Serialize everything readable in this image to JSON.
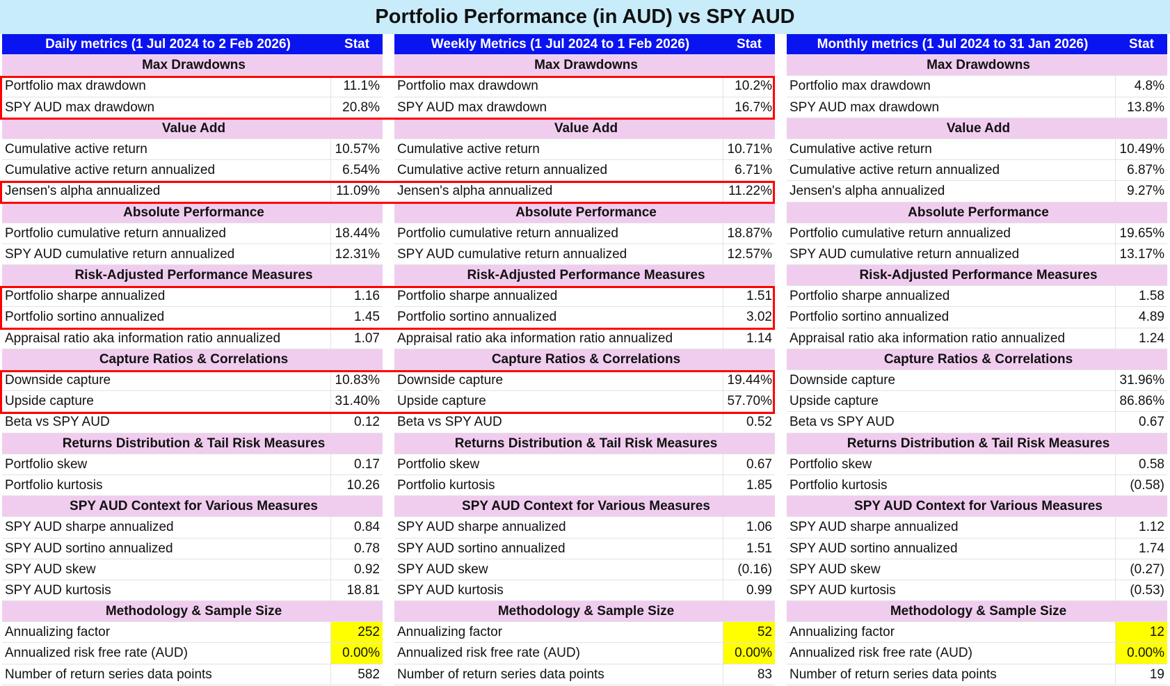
{
  "title": "Portfolio Performance (in AUD) vs SPY AUD",
  "colors": {
    "title_bg": "#c9ecfa",
    "header_bg": "#0a14f0",
    "section_bg": "#f0cdef",
    "highlight": "#ffff00",
    "box": "#ff0000"
  },
  "panels": [
    {
      "header": "Daily metrics (1 Jul 2024 to 2 Feb 2026)",
      "stat_label": "Stat",
      "rows": [
        {
          "s": "Max Drawdowns"
        },
        {
          "l": "Portfolio max drawdown",
          "v": "11.1%"
        },
        {
          "l": "SPY AUD max drawdown",
          "v": "20.8%"
        },
        {
          "s": "Value Add"
        },
        {
          "l": "Cumulative active return",
          "v": "10.57%"
        },
        {
          "l": "Cumulative active return annualized",
          "v": "6.54%"
        },
        {
          "l": "Jensen's alpha annualized",
          "v": "11.09%"
        },
        {
          "s": "Absolute Performance"
        },
        {
          "l": "Portfolio cumulative return annualized",
          "v": "18.44%"
        },
        {
          "l": "SPY AUD cumulative return annualized",
          "v": "12.31%"
        },
        {
          "s": "Risk-Adjusted Performance Measures"
        },
        {
          "l": "Portfolio sharpe annualized",
          "v": "1.16"
        },
        {
          "l": "Portfolio sortino annualized",
          "v": "1.45"
        },
        {
          "l": "Appraisal ratio aka information ratio annualized",
          "v": "1.07"
        },
        {
          "s": "Capture Ratios & Correlations"
        },
        {
          "l": "Downside capture",
          "v": "10.83%"
        },
        {
          "l": "Upside capture",
          "v": "31.40%"
        },
        {
          "l": "Beta vs SPY AUD",
          "v": "0.12"
        },
        {
          "s": "Returns Distribution & Tail Risk Measures"
        },
        {
          "l": "Portfolio skew",
          "v": "0.17"
        },
        {
          "l": "Portfolio kurtosis",
          "v": "10.26"
        },
        {
          "s": "SPY AUD Context for Various Measures"
        },
        {
          "l": "SPY AUD sharpe annualized",
          "v": "0.84"
        },
        {
          "l": "SPY AUD sortino annualized",
          "v": "0.78"
        },
        {
          "l": "SPY AUD skew",
          "v": "0.92"
        },
        {
          "l": "SPY AUD kurtosis",
          "v": "18.81"
        },
        {
          "s": "Methodology & Sample Size"
        },
        {
          "l": "Annualizing factor",
          "v": "252",
          "hl": true
        },
        {
          "l": "Annualized risk free rate (AUD)",
          "v": "0.00%",
          "hl": true
        },
        {
          "l": "Number of return series data points",
          "v": "582"
        }
      ]
    },
    {
      "header": "Weekly Metrics (1 Jul 2024 to 1 Feb 2026)",
      "stat_label": "Stat",
      "rows": [
        {
          "s": "Max Drawdowns"
        },
        {
          "l": "Portfolio max drawdown",
          "v": "10.2%"
        },
        {
          "l": "SPY AUD max drawdown",
          "v": "16.7%"
        },
        {
          "s": "Value Add"
        },
        {
          "l": "Cumulative active return",
          "v": "10.71%"
        },
        {
          "l": "Cumulative active return annualized",
          "v": "6.71%"
        },
        {
          "l": "Jensen's alpha annualized",
          "v": "11.22%"
        },
        {
          "s": "Absolute Performance"
        },
        {
          "l": "Portfolio cumulative return annualized",
          "v": "18.87%"
        },
        {
          "l": "SPY AUD cumulative return annualized",
          "v": "12.57%"
        },
        {
          "s": "Risk-Adjusted Performance Measures"
        },
        {
          "l": "Portfolio sharpe annualized",
          "v": "1.51"
        },
        {
          "l": "Portfolio sortino annualized",
          "v": "3.02"
        },
        {
          "l": "Appraisal ratio aka information ratio annualized",
          "v": "1.14"
        },
        {
          "s": "Capture Ratios & Correlations"
        },
        {
          "l": "Downside capture",
          "v": "19.44%"
        },
        {
          "l": "Upside capture",
          "v": "57.70%"
        },
        {
          "l": "Beta vs SPY AUD",
          "v": "0.52"
        },
        {
          "s": "Returns Distribution & Tail Risk Measures"
        },
        {
          "l": "Portfolio skew",
          "v": "0.67"
        },
        {
          "l": "Portfolio kurtosis",
          "v": "1.85"
        },
        {
          "s": "SPY AUD Context for Various Measures"
        },
        {
          "l": "SPY AUD sharpe annualized",
          "v": "1.06"
        },
        {
          "l": "SPY AUD sortino annualized",
          "v": "1.51"
        },
        {
          "l": "SPY AUD skew",
          "v": "(0.16)"
        },
        {
          "l": "SPY AUD kurtosis",
          "v": "0.99"
        },
        {
          "s": "Methodology & Sample Size"
        },
        {
          "l": "Annualizing factor",
          "v": "52",
          "hl": true
        },
        {
          "l": "Annualized risk free rate (AUD)",
          "v": "0.00%",
          "hl": true
        },
        {
          "l": "Number of return series data points",
          "v": "83"
        }
      ]
    },
    {
      "header": "Monthly metrics (1 Jul 2024 to 31 Jan 2026)",
      "stat_label": "Stat",
      "rows": [
        {
          "s": "Max Drawdowns"
        },
        {
          "l": "Portfolio max drawdown",
          "v": "4.8%"
        },
        {
          "l": "SPY AUD max drawdown",
          "v": "13.8%"
        },
        {
          "s": "Value Add"
        },
        {
          "l": "Cumulative active return",
          "v": "10.49%"
        },
        {
          "l": "Cumulative active return annualized",
          "v": "6.87%"
        },
        {
          "l": "Jensen's alpha annualized",
          "v": "9.27%"
        },
        {
          "s": "Absolute Performance"
        },
        {
          "l": "Portfolio cumulative return annualized",
          "v": "19.65%"
        },
        {
          "l": "SPY AUD cumulative return annualized",
          "v": "13.17%"
        },
        {
          "s": "Risk-Adjusted Performance Measures"
        },
        {
          "l": "Portfolio sharpe annualized",
          "v": "1.58"
        },
        {
          "l": "Portfolio sortino annualized",
          "v": "4.89"
        },
        {
          "l": "Appraisal ratio aka information ratio annualized",
          "v": "1.24"
        },
        {
          "s": "Capture Ratios & Correlations"
        },
        {
          "l": "Downside capture",
          "v": "31.96%"
        },
        {
          "l": "Upside capture",
          "v": "86.86%"
        },
        {
          "l": "Beta vs SPY AUD",
          "v": "0.67"
        },
        {
          "s": "Returns Distribution & Tail Risk Measures"
        },
        {
          "l": "Portfolio skew",
          "v": "0.58"
        },
        {
          "l": "Portfolio kurtosis",
          "v": "(0.58)"
        },
        {
          "s": "SPY AUD Context for Various Measures"
        },
        {
          "l": "SPY AUD sharpe annualized",
          "v": "1.12"
        },
        {
          "l": "SPY AUD sortino annualized",
          "v": "1.74"
        },
        {
          "l": "SPY AUD skew",
          "v": "(0.27)"
        },
        {
          "l": "SPY AUD kurtosis",
          "v": "(0.53)"
        },
        {
          "s": "Methodology & Sample Size"
        },
        {
          "l": "Annualizing factor",
          "v": "12",
          "hl": true
        },
        {
          "l": "Annualized risk free rate (AUD)",
          "v": "0.00%",
          "hl": true
        },
        {
          "l": "Number of return series data points",
          "v": "19"
        }
      ]
    }
  ],
  "highlight_boxes": [
    [
      1,
      2
    ],
    [
      6,
      6
    ],
    [
      11,
      12
    ],
    [
      15,
      16
    ]
  ]
}
